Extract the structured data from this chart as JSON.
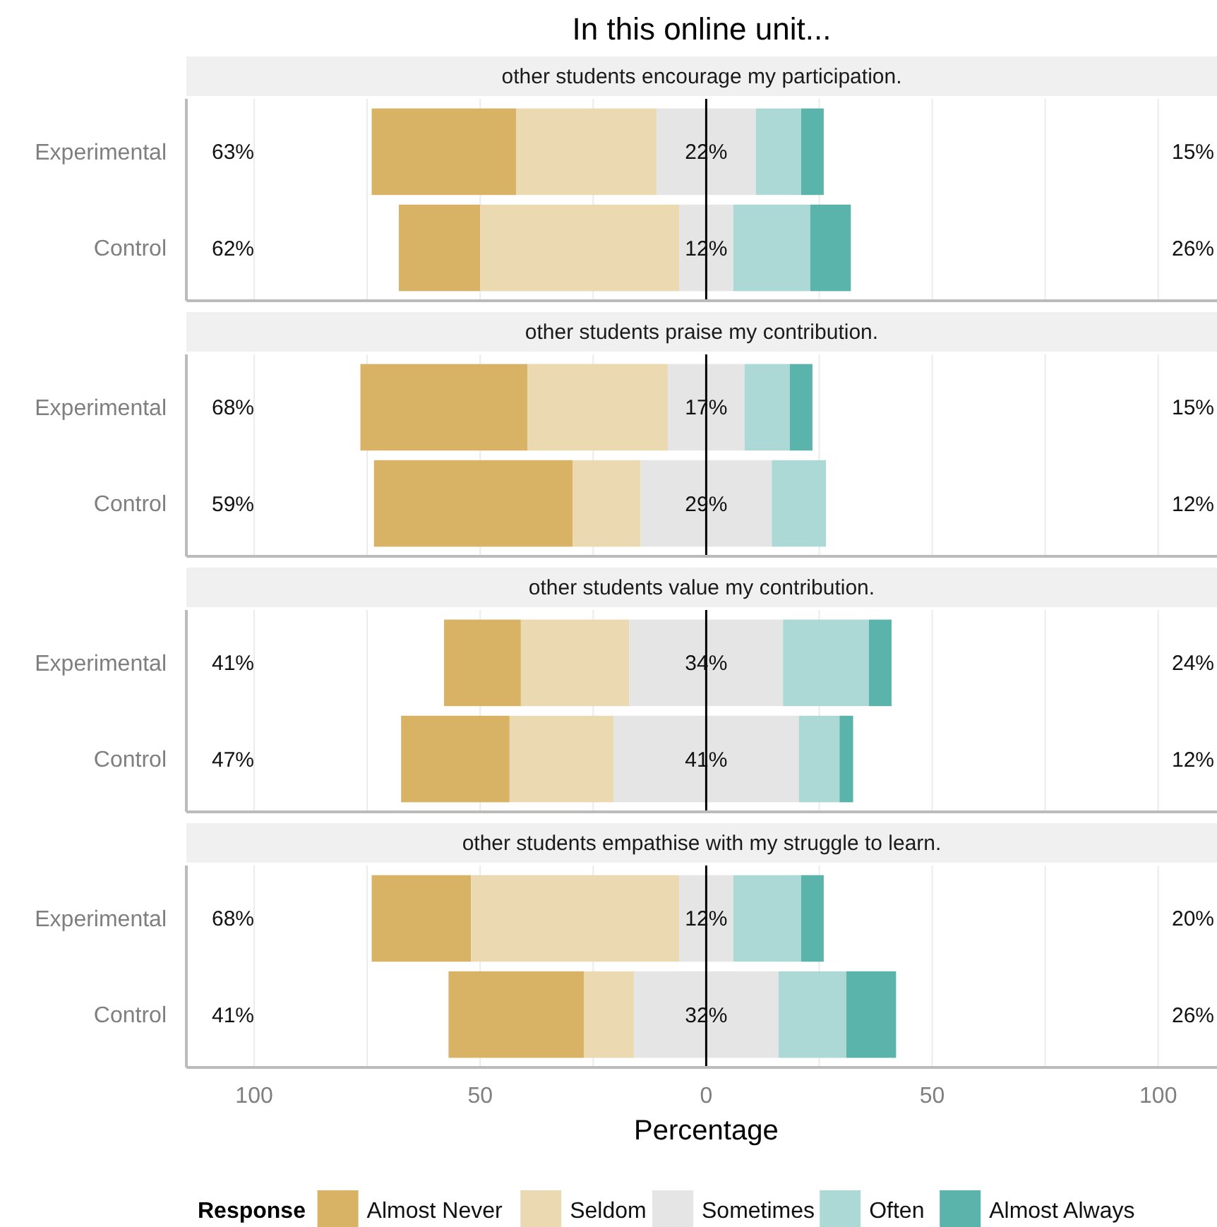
{
  "chart_data": [
    {
      "type": "bar",
      "orientation": "horizontal",
      "title": "In this online unit...",
      "subtitle": "other students encourage my participation.",
      "categories": [
        "Experimental",
        "Control"
      ],
      "series": [
        {
          "color": "#d8b365",
          "base": [
            -74,
            -68
          ],
          "values": [
            32,
            18
          ]
        },
        {
          "color": "#ebd9b2",
          "base": [
            -42,
            -50
          ],
          "values": [
            31,
            44
          ]
        },
        {
          "color": "#e5e5e5",
          "base": [
            -11,
            -6
          ],
          "values": [
            22,
            12
          ],
          "value_labels": [
            "22%",
            "12%"
          ]
        },
        {
          "color": "#acd9d5",
          "base": [
            11,
            6
          ],
          "values": [
            10,
            17
          ]
        },
        {
          "color": "#5ab4ac",
          "base": [
            21,
            23
          ],
          "values": [
            5,
            9
          ]
        }
      ],
      "xlim": [
        -115,
        113
      ],
      "xticks": [
        -100,
        -75,
        -50,
        -25,
        0,
        25,
        50,
        75,
        100
      ],
      "grid": "x",
      "tick_labels": "y",
      "ref_lines": [
        {
          "axis": "x",
          "value": 0,
          "color": "#000000"
        }
      ],
      "annotations": [
        "63%",
        "15%",
        "62%",
        "26%"
      ]
    },
    {
      "type": "bar",
      "orientation": "horizontal",
      "subtitle": "other students praise my contribution.",
      "categories": [
        "Experimental",
        "Control"
      ],
      "series": [
        {
          "color": "#d8b365",
          "base": [
            -76.5,
            -73.5
          ],
          "values": [
            37,
            44
          ]
        },
        {
          "color": "#ebd9b2",
          "base": [
            -39.5,
            -29.5
          ],
          "values": [
            31,
            15
          ]
        },
        {
          "color": "#e5e5e5",
          "base": [
            -8.5,
            -14.5
          ],
          "values": [
            17,
            29
          ],
          "value_labels": [
            "17%",
            "29%"
          ]
        },
        {
          "color": "#acd9d5",
          "base": [
            8.5,
            14.5
          ],
          "values": [
            10,
            12
          ]
        },
        {
          "color": "#5ab4ac",
          "base": [
            18.5,
            null
          ],
          "values": [
            5,
            null
          ]
        }
      ],
      "xlim": [
        -115,
        113
      ],
      "xticks": [
        -100,
        -75,
        -50,
        -25,
        0,
        25,
        50,
        75,
        100
      ],
      "grid": "x",
      "tick_labels": "y",
      "ref_lines": [
        {
          "axis": "x",
          "value": 0,
          "color": "#000000"
        }
      ],
      "annotations": [
        "68%",
        "15%",
        "59%",
        "12%"
      ]
    },
    {
      "type": "bar",
      "orientation": "horizontal",
      "subtitle": "other students value my contribution.",
      "categories": [
        "Experimental",
        "Control"
      ],
      "series": [
        {
          "color": "#d8b365",
          "base": [
            -58,
            -67.5
          ],
          "values": [
            17,
            24
          ]
        },
        {
          "color": "#ebd9b2",
          "base": [
            -41,
            -43.5
          ],
          "values": [
            24,
            23
          ]
        },
        {
          "color": "#e5e5e5",
          "base": [
            -17,
            -20.5
          ],
          "values": [
            34,
            41
          ],
          "value_labels": [
            "34%",
            "41%"
          ]
        },
        {
          "color": "#acd9d5",
          "base": [
            17,
            20.5
          ],
          "values": [
            19,
            9
          ]
        },
        {
          "color": "#5ab4ac",
          "base": [
            36,
            29.5
          ],
          "values": [
            5,
            3
          ]
        }
      ],
      "xlim": [
        -115,
        113
      ],
      "xticks": [
        -100,
        -75,
        -50,
        -25,
        0,
        25,
        50,
        75,
        100
      ],
      "grid": "x",
      "tick_labels": "y",
      "ref_lines": [
        {
          "axis": "x",
          "value": 0,
          "color": "#000000"
        }
      ],
      "annotations": [
        "41%",
        "24%",
        "47%",
        "12%"
      ]
    },
    {
      "type": "bar",
      "orientation": "horizontal",
      "subtitle": "other students empathise with my struggle to learn.",
      "categories": [
        "Experimental",
        "Control"
      ],
      "series": [
        {
          "name": "Almost Never",
          "color": "#d8b365",
          "base": [
            -74,
            -57
          ],
          "values": [
            22,
            30
          ]
        },
        {
          "name": "Seldom",
          "color": "#ebd9b2",
          "base": [
            -52,
            -27
          ],
          "values": [
            46,
            11
          ]
        },
        {
          "name": "Sometimes",
          "color": "#e5e5e5",
          "base": [
            -6,
            -16
          ],
          "values": [
            12,
            32
          ],
          "value_labels": [
            "12%",
            "32%"
          ]
        },
        {
          "name": "Often",
          "color": "#acd9d5",
          "base": [
            6,
            16
          ],
          "values": [
            15,
            15
          ]
        },
        {
          "name": "Almost Always",
          "color": "#5ab4ac",
          "base": [
            21,
            31
          ],
          "values": [
            5,
            11
          ]
        }
      ],
      "xlim": [
        -115,
        113
      ],
      "xticks": [
        {
          "value": -100,
          "label": "100"
        },
        {
          "value": -75,
          "label": null
        },
        {
          "value": -50,
          "label": "50"
        },
        {
          "value": -25,
          "label": null
        },
        0,
        {
          "value": 25,
          "label": null
        },
        50,
        {
          "value": 75,
          "label": null
        },
        100
      ],
      "grid": "x",
      "xlabel": "Percentage",
      "legend": "bottom",
      "legend_title": "Response",
      "ref_lines": [
        {
          "axis": "x",
          "value": 0,
          "color": "#000000"
        }
      ],
      "annotations": [
        "68%",
        "20%",
        "41%",
        "26%"
      ]
    }
  ]
}
